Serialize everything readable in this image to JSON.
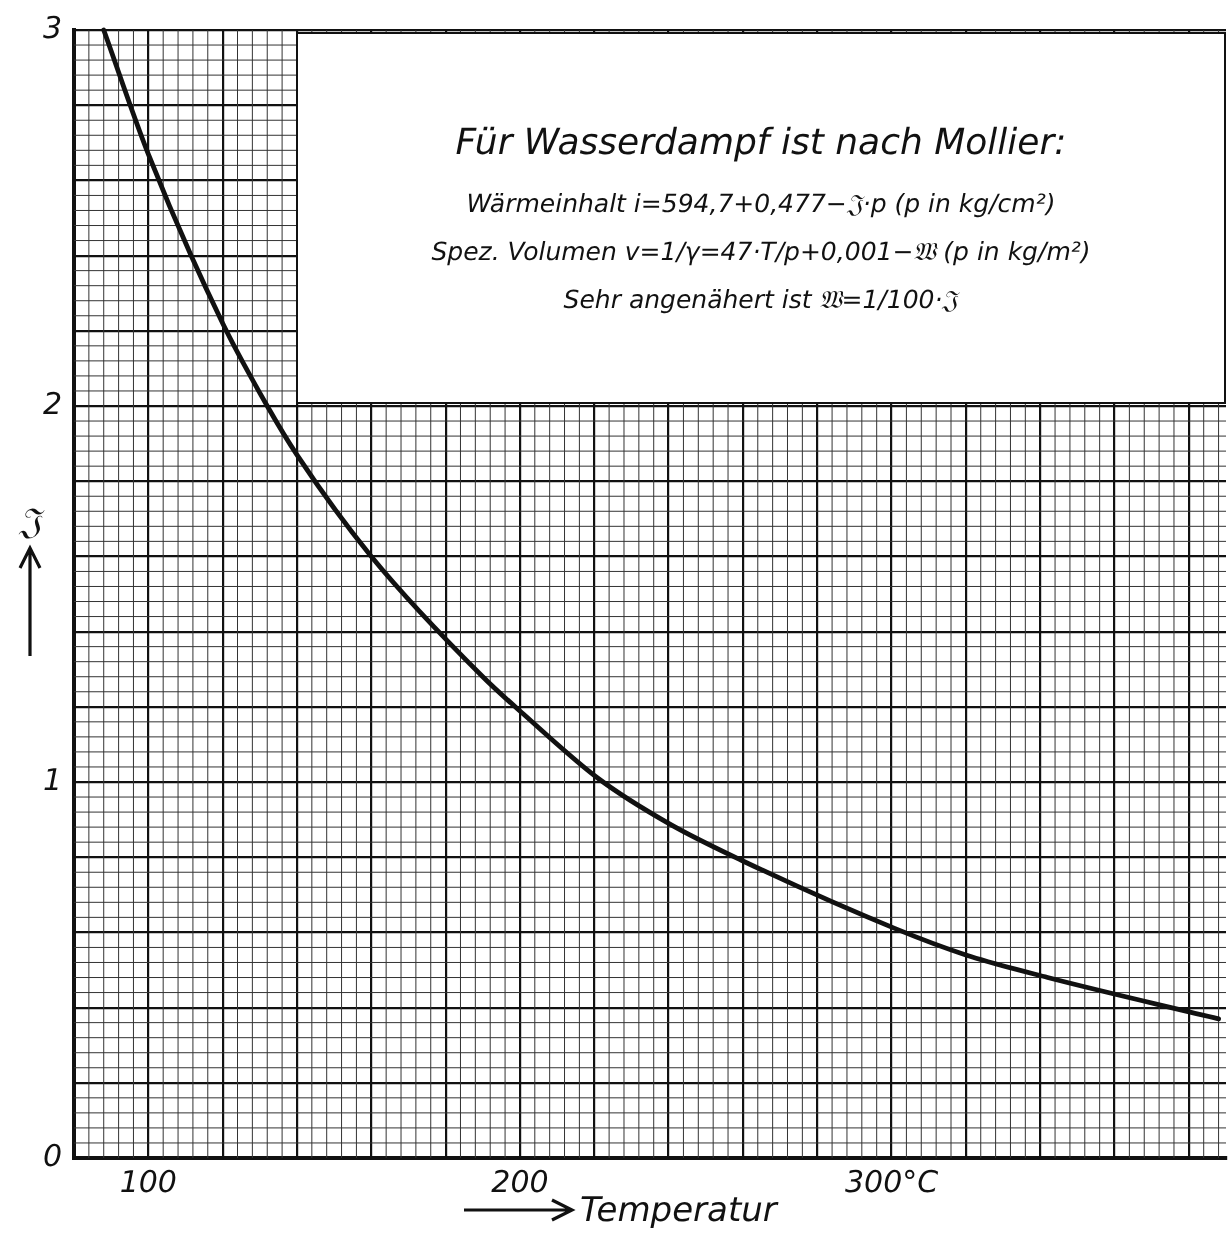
{
  "chart_data": {
    "type": "line",
    "xlabel": "Temperatur",
    "ylabel": "𝔍",
    "annotations": [
      "Für Wasserdampf ist nach Mollier:",
      "Wärmeinhalt i=594,7+0,477−𝔍·p   (p in kg/cm²)",
      "Spez. Volumen v=1/γ=47·T/p+0,001−𝔚  (p in kg/m²)",
      "Sehr angenähert ist 𝔚=1/100·𝔍"
    ],
    "x": [
      88,
      100,
      120,
      132,
      140,
      160,
      190,
      201,
      221,
      240,
      260,
      301,
      320,
      342,
      388
    ],
    "series": [
      {
        "color": "#111111",
        "values": [
          3.0,
          2.67,
          2.22,
          2.0,
          1.87,
          1.6,
          1.28,
          1.18,
          1.01,
          0.89,
          0.79,
          0.61,
          0.54,
          0.48,
          0.37
        ]
      }
    ],
    "xlim": [
      80,
      390
    ],
    "xticks": [
      {
        "value": 80,
        "label": null
      },
      {
        "value": 100,
        "label": "100"
      },
      {
        "value": 120,
        "label": null
      },
      {
        "value": 140,
        "label": null
      },
      {
        "value": 160,
        "label": null
      },
      {
        "value": 180,
        "label": null
      },
      {
        "value": 200,
        "label": "200"
      },
      {
        "value": 220,
        "label": null
      },
      {
        "value": 240,
        "label": null
      },
      {
        "value": 260,
        "label": null
      },
      {
        "value": 280,
        "label": null
      },
      {
        "value": 300,
        "label": "300°C"
      },
      {
        "value": 320,
        "label": null
      },
      {
        "value": 340,
        "label": null
      },
      {
        "value": 360,
        "label": null
      },
      {
        "value": 380,
        "label": null
      }
    ],
    "ylim": [
      0,
      3
    ],
    "yticks": [
      0,
      {
        "value": 0.2,
        "label": null
      },
      {
        "value": 0.4,
        "label": null
      },
      {
        "value": 0.6,
        "label": null
      },
      {
        "value": 0.8,
        "label": null
      },
      1,
      {
        "value": 1.2,
        "label": null
      },
      {
        "value": 1.4,
        "label": null
      },
      {
        "value": 1.6,
        "label": null
      },
      {
        "value": 1.8,
        "label": null
      },
      2,
      {
        "value": 2.2,
        "label": null
      },
      {
        "value": 2.4,
        "label": null
      },
      {
        "value": 2.6,
        "label": null
      },
      {
        "value": 2.8,
        "label": null
      },
      3
    ],
    "grid": true,
    "legend": false,
    "marker": "none",
    "line_style": "solid"
  }
}
